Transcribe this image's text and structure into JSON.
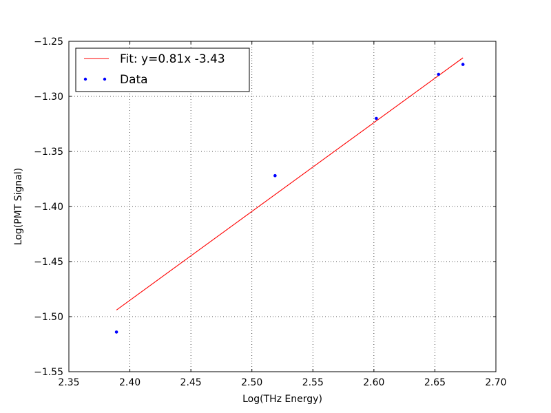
{
  "chart_data": {
    "type": "scatter",
    "xlabel": "Log(THz Energy)",
    "ylabel": "Log(PMT Signal)",
    "xlim": [
      2.35,
      2.7
    ],
    "ylim": [
      -1.55,
      -1.25
    ],
    "grid": true,
    "legend_position": "top-left",
    "x_ticks": [
      2.35,
      2.4,
      2.45,
      2.5,
      2.55,
      2.6,
      2.65,
      2.7
    ],
    "x_tick_labels": [
      "2.35",
      "2.40",
      "2.45",
      "2.50",
      "2.55",
      "2.60",
      "2.65",
      "2.70"
    ],
    "y_ticks": [
      -1.25,
      -1.3,
      -1.35,
      -1.4,
      -1.45,
      -1.5,
      -1.55
    ],
    "y_tick_labels": [
      "−1.25",
      "−1.30",
      "−1.35",
      "−1.40",
      "−1.45",
      "−1.50",
      "−1.55"
    ],
    "series": [
      {
        "name": "Fit: y=0.81x -3.43",
        "kind": "line",
        "color": "#ff0000",
        "x": [
          2.389,
          2.673
        ],
        "y": [
          -1.494,
          -1.265
        ]
      },
      {
        "name": "Data",
        "kind": "scatter",
        "color": "#0000ff",
        "x": [
          2.389,
          2.519,
          2.602,
          2.653,
          2.673
        ],
        "y": [
          -1.514,
          -1.372,
          -1.32,
          -1.28,
          -1.271
        ]
      }
    ]
  }
}
